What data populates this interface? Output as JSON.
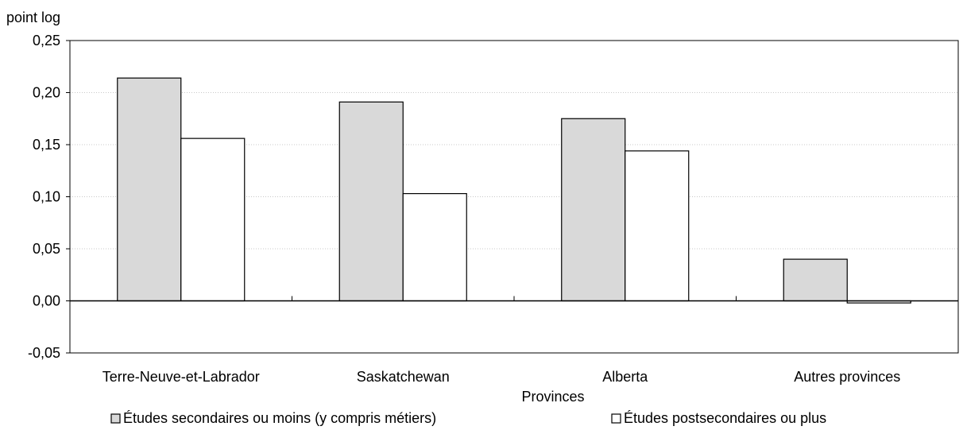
{
  "chart_data": {
    "type": "bar",
    "ylabel": "point log",
    "xlabel": "Provinces",
    "ylim": [
      -0.05,
      0.25
    ],
    "yticks": [
      0.25,
      0.2,
      0.15,
      0.1,
      0.05,
      0.0,
      -0.05
    ],
    "ytick_labels": [
      "0,25",
      "0,20",
      "0,15",
      "0,10",
      "0,05",
      "0,00",
      "-0,05"
    ],
    "categories": [
      "Terre-Neuve-et-Labrador",
      "Saskatchewan",
      "Alberta",
      "Autres provinces"
    ],
    "series": [
      {
        "name": "Études secondaires ou moins (y compris métiers)",
        "values": [
          0.214,
          0.191,
          0.175,
          0.04
        ],
        "color": "#d9d9d9"
      },
      {
        "name": "Études postsecondaires ou plus",
        "values": [
          0.156,
          0.103,
          0.144,
          -0.002
        ],
        "color": "#ffffff"
      }
    ],
    "grid": true,
    "legend_position": "bottom"
  }
}
